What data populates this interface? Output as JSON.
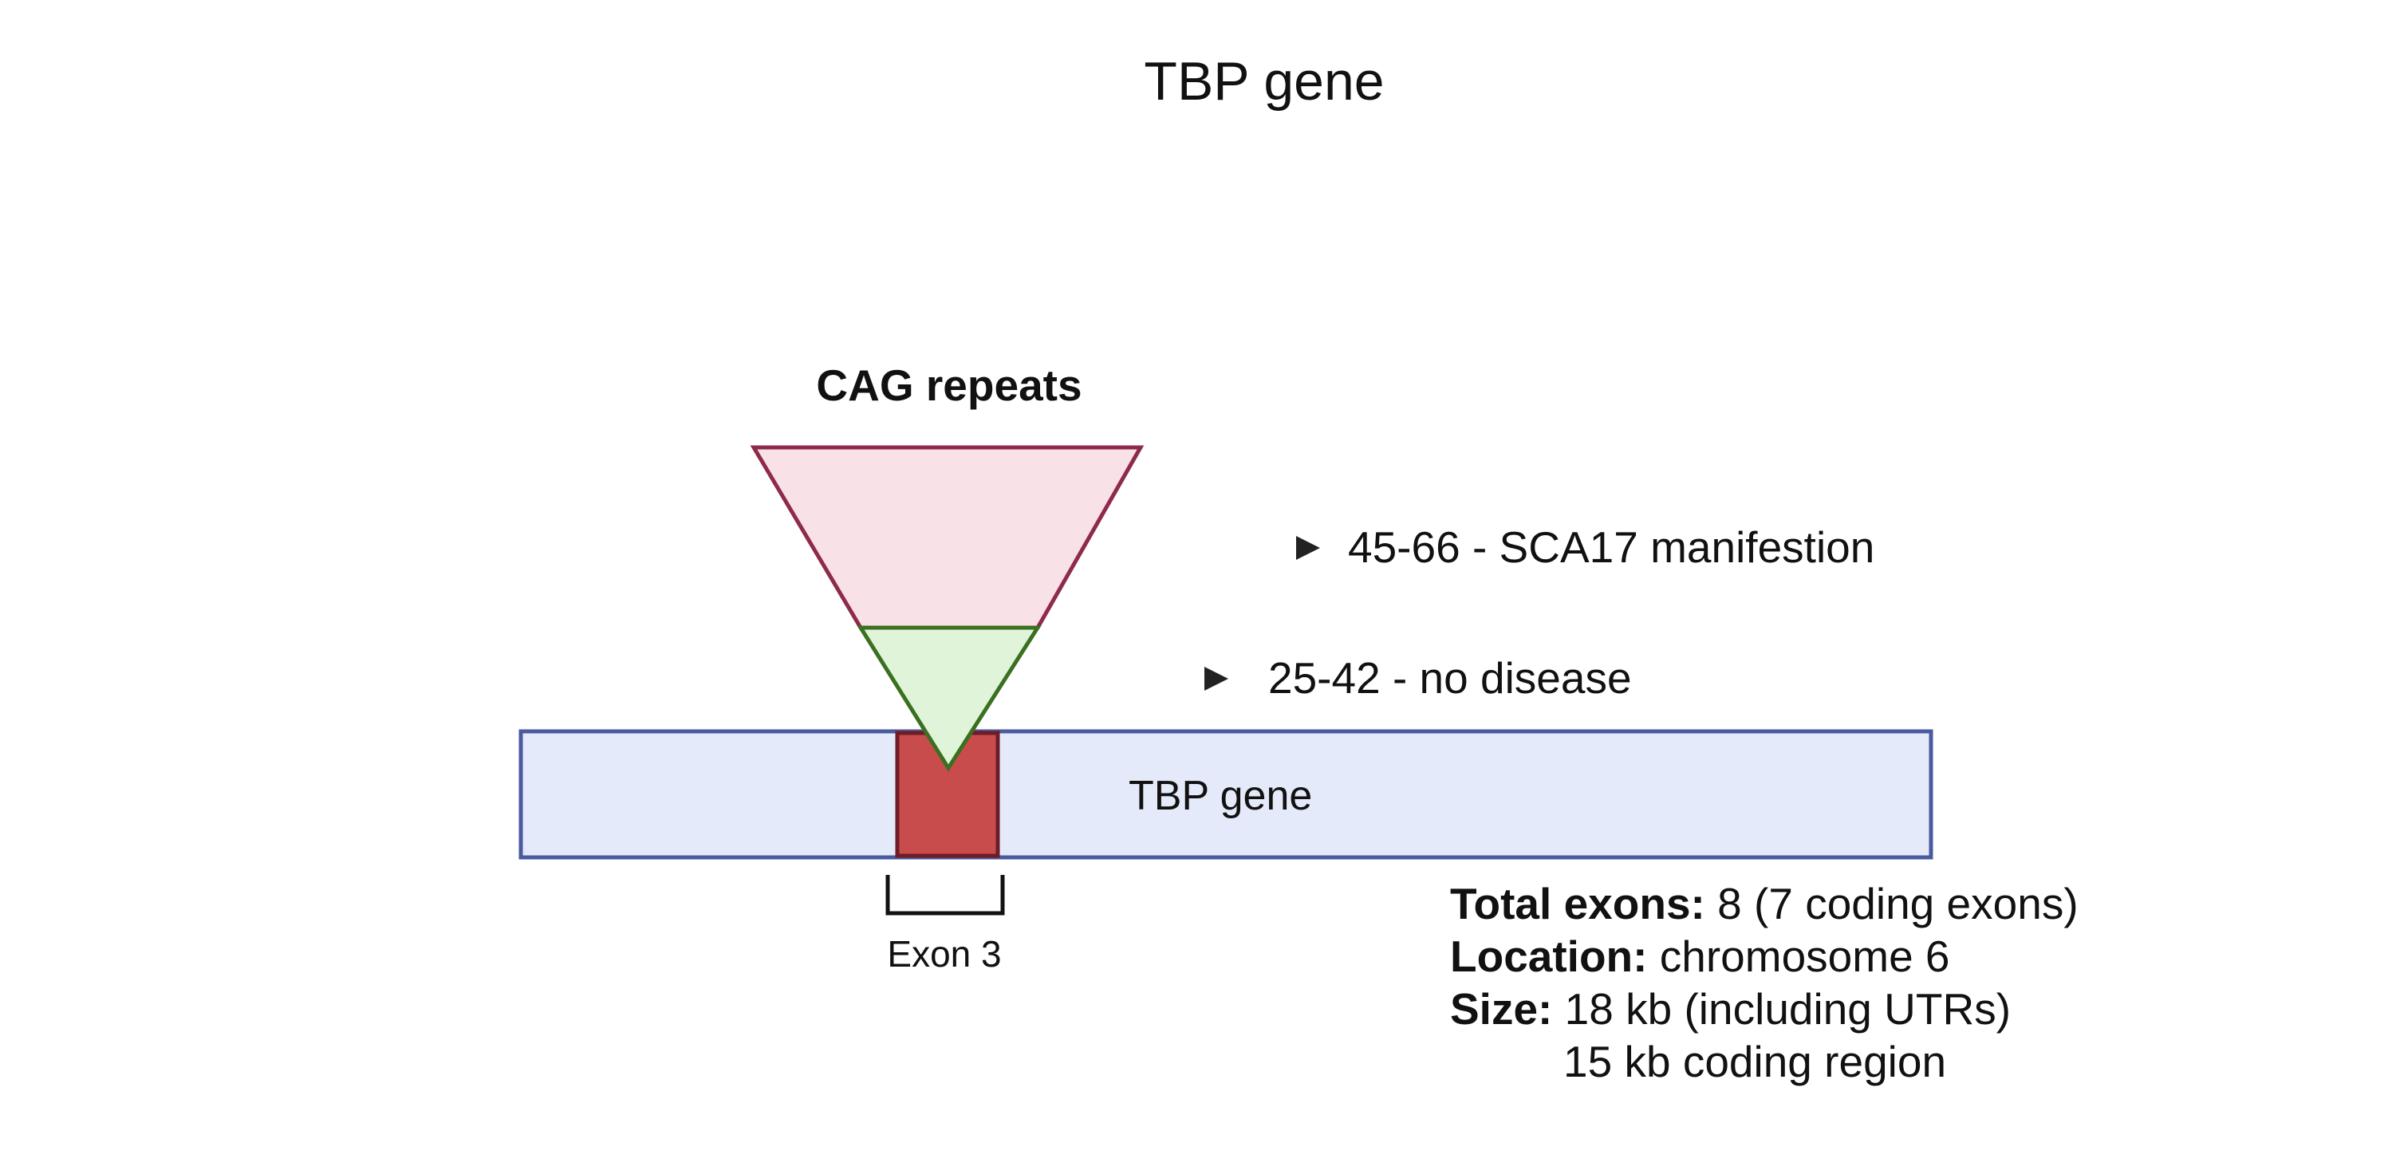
{
  "title": "TBP gene",
  "cag_label": "CAG repeats",
  "ranges": [
    {
      "text": "45-66 - SCA17 manifestion"
    },
    {
      "text": "25-42 - no disease"
    }
  ],
  "gene": {
    "label": "TBP gene",
    "exon_label": "Exon 3"
  },
  "info": {
    "total_exons_label": "Total exons:",
    "total_exons_value": " 8 (7 coding exons)",
    "location_label": "Location:",
    "location_value": " chromosome 6",
    "size_label": "Size:",
    "size_value": " 18 kb (including UTRs)",
    "size_value_2": "15 kb coding region"
  },
  "colors": {
    "gene_fill": "#e4eaf9",
    "gene_stroke": "#4a5a9e",
    "exon_fill": "#c84c4c",
    "exon_stroke": "#6e1c26",
    "pathogenic_fill": "#f9e1e8",
    "pathogenic_stroke": "#8e2a4a",
    "normal_fill": "#e0f4da",
    "normal_stroke": "#3a7020",
    "arrow": "#222222"
  }
}
